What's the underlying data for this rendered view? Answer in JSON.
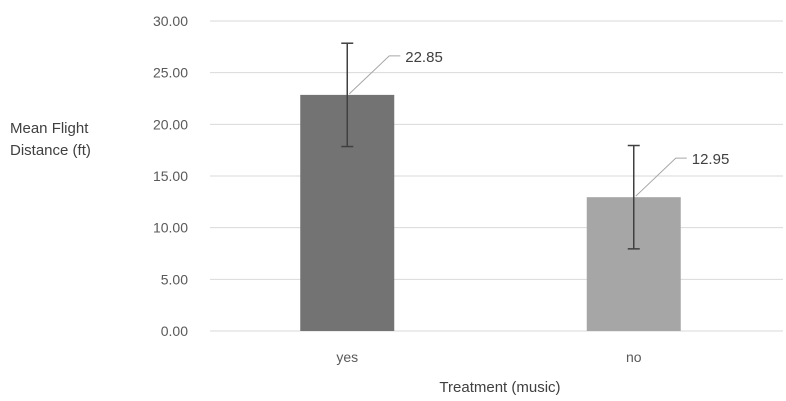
{
  "chart_data": {
    "type": "bar",
    "title": "",
    "categories": [
      "yes",
      "no"
    ],
    "values": [
      22.85,
      12.95
    ],
    "error_bars": [
      5.0,
      5.0
    ],
    "data_labels": [
      "22.85",
      "12.95"
    ],
    "bar_colors": [
      "#737373",
      "#a6a6a6"
    ],
    "xlabel": "Treatment (music)",
    "ylabel_lines": [
      "Mean Flight",
      "Distance (ft)"
    ],
    "ylim": [
      0,
      30
    ],
    "yticks": [
      "0.00",
      "5.00",
      "10.00",
      "15.00",
      "20.00",
      "25.00",
      "30.00"
    ],
    "grid": true,
    "legend": false,
    "colors": {
      "grid": "#d9d9d9",
      "axis_text": "#595959",
      "error_bar": "#404040"
    }
  }
}
